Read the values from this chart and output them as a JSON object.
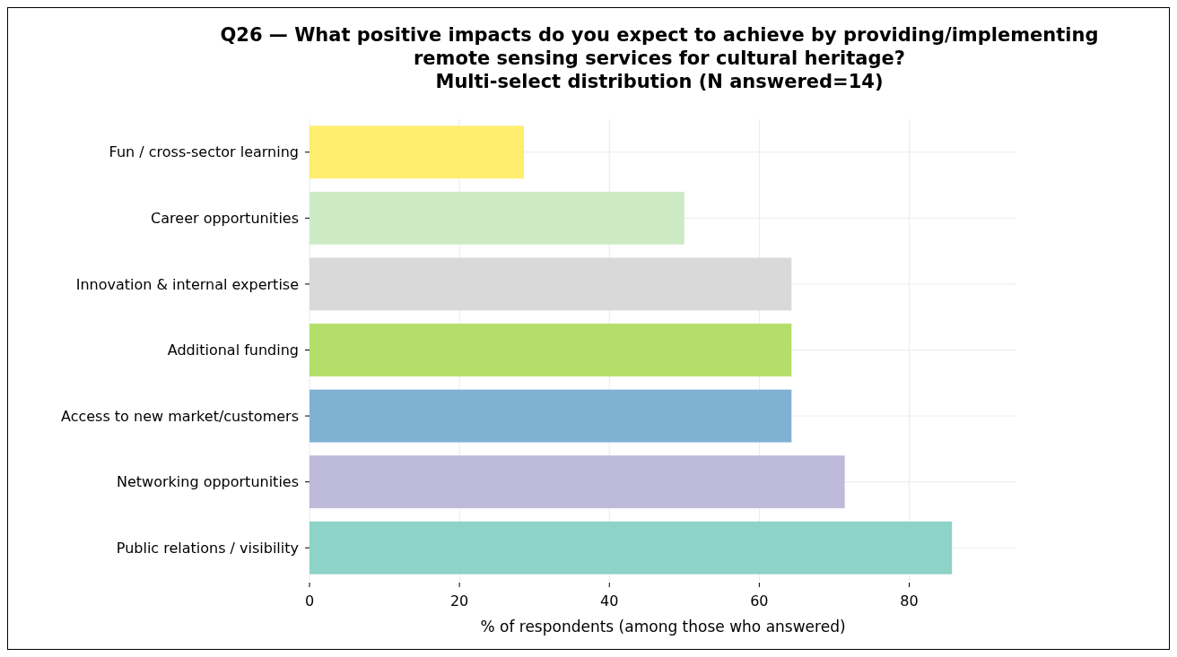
{
  "chart_data": {
    "type": "bar",
    "orientation": "horizontal",
    "title": "Q26 — What positive impacts do you expect to achieve by providing/implementing\nremote sensing services for cultural heritage?\nMulti-select distribution (N answered=14)",
    "xlabel": "% of respondents (among those who answered)",
    "categories": [
      "Fun / cross-sector learning",
      "Career opportunities",
      "Innovation & internal expertise",
      "Additional funding",
      "Access to new market/customers",
      "Networking opportunities",
      "Public relations / visibility"
    ],
    "values": [
      28.6,
      50,
      64.3,
      64.3,
      64.3,
      71.4,
      85.7
    ],
    "colors": [
      "#ffed6f",
      "#ccebc5",
      "#d9d9d9",
      "#b3de69",
      "#80b1d3",
      "#bebada",
      "#8dd3c7"
    ],
    "xlim": [
      0,
      94.3
    ],
    "xticks": [
      0,
      20,
      40,
      60,
      80
    ],
    "grid": true
  }
}
